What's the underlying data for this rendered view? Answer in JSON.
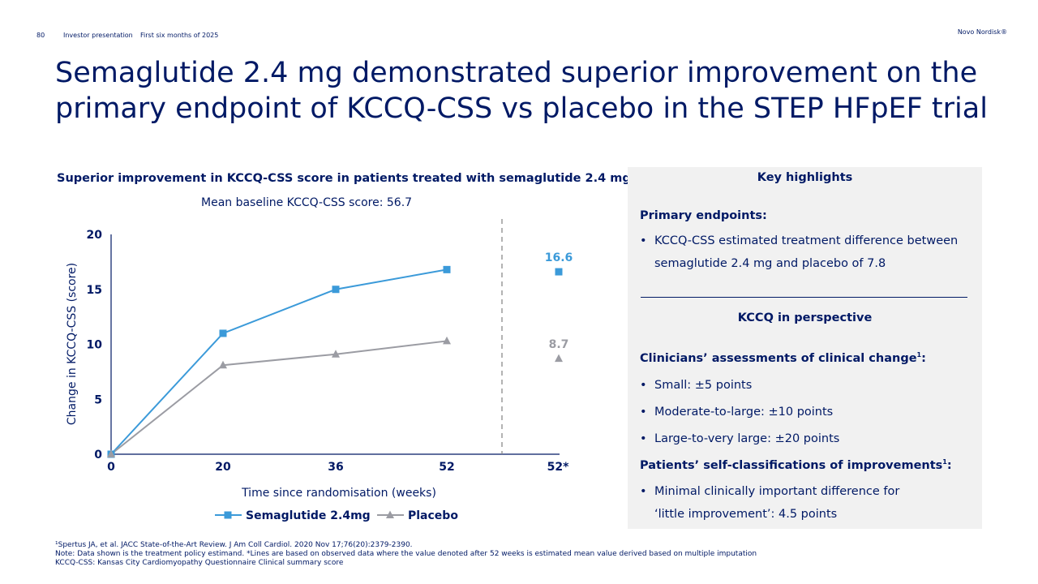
{
  "header": {
    "page_number": "80",
    "section": "Investor presentation",
    "period": "First six months of 2025",
    "brand": "Novo Nordisk®"
  },
  "title": "Semaglutide 2.4 mg demonstrated superior improvement on the primary endpoint of KCCQ-CSS vs placebo in the STEP HFpEF trial",
  "chart_data": {
    "type": "line",
    "title": "Superior improvement in KCCQ-CSS score in patients treated with semaglutide 2.4 mg",
    "subtitle": "Mean baseline KCCQ-CSS score: 56.7",
    "xlabel": "Time since randomisation (weeks)",
    "ylabel": "Change in KCCQ-CSS (score)",
    "x_ticks": [
      "0",
      "20",
      "36",
      "52",
      "52*"
    ],
    "y_ticks": [
      "0",
      "5",
      "10",
      "15",
      "20"
    ],
    "ylim": [
      0,
      20
    ],
    "x": [
      0,
      20,
      36,
      52
    ],
    "series": [
      {
        "name": "Semaglutide 2.4mg",
        "color": "#3b9ad9",
        "marker": "square",
        "values": [
          0,
          11.0,
          15.0,
          16.8
        ]
      },
      {
        "name": "Placebo",
        "color": "#9b9ca3",
        "marker": "triangle",
        "values": [
          0,
          8.1,
          9.1,
          10.3
        ]
      }
    ],
    "estimated": [
      {
        "series": "Semaglutide 2.4mg",
        "value": 16.6,
        "label": "16.6"
      },
      {
        "series": "Placebo",
        "value": 8.7,
        "label": "8.7"
      }
    ],
    "legend_position": "bottom-center"
  },
  "panel": {
    "heading": "Key highlights",
    "primary_label": "Primary endpoints:",
    "primary_items": [
      {
        "line1": "KCCQ-CSS estimated treatment difference between",
        "line2": "semaglutide 2.4 mg and placebo of 7.8"
      }
    ],
    "perspective_heading": "KCCQ in perspective",
    "clinicians_label": "Clinicians’ assessments of clinical change",
    "clinicians_sup": "1",
    "clinicians_colon": ":",
    "clinicians_items": [
      "Small: ±5 points",
      "Moderate-to-large: ±10 points",
      "Large-to-very large: ±20 points"
    ],
    "patients_label": "Patients’ self-classifications of improvements",
    "patients_sup": "1",
    "patients_colon": ":",
    "patients_item": {
      "line1": "Minimal clinically important difference for",
      "line2": "‘little improvement’: 4.5 points"
    }
  },
  "footer": {
    "line1": "¹Spertus JA, et al. JACC State-of-the-Art Review. J Am Coll Cardiol. 2020 Nov 17;76(20):2379-2390.",
    "line2": "Note: Data shown is the treatment policy estimand. *Lines are based on observed data where the value denoted after 52 weeks is estimated mean value derived based on multiple imputation",
    "line3": "KCCQ-CSS: Kansas City Cardiomyopathy Questionnaire Clinical summary score"
  },
  "colors": {
    "navy": "#001965",
    "sema": "#3b9ad9",
    "placebo": "#9b9ca3",
    "panel_bg": "#f1f1f1"
  }
}
